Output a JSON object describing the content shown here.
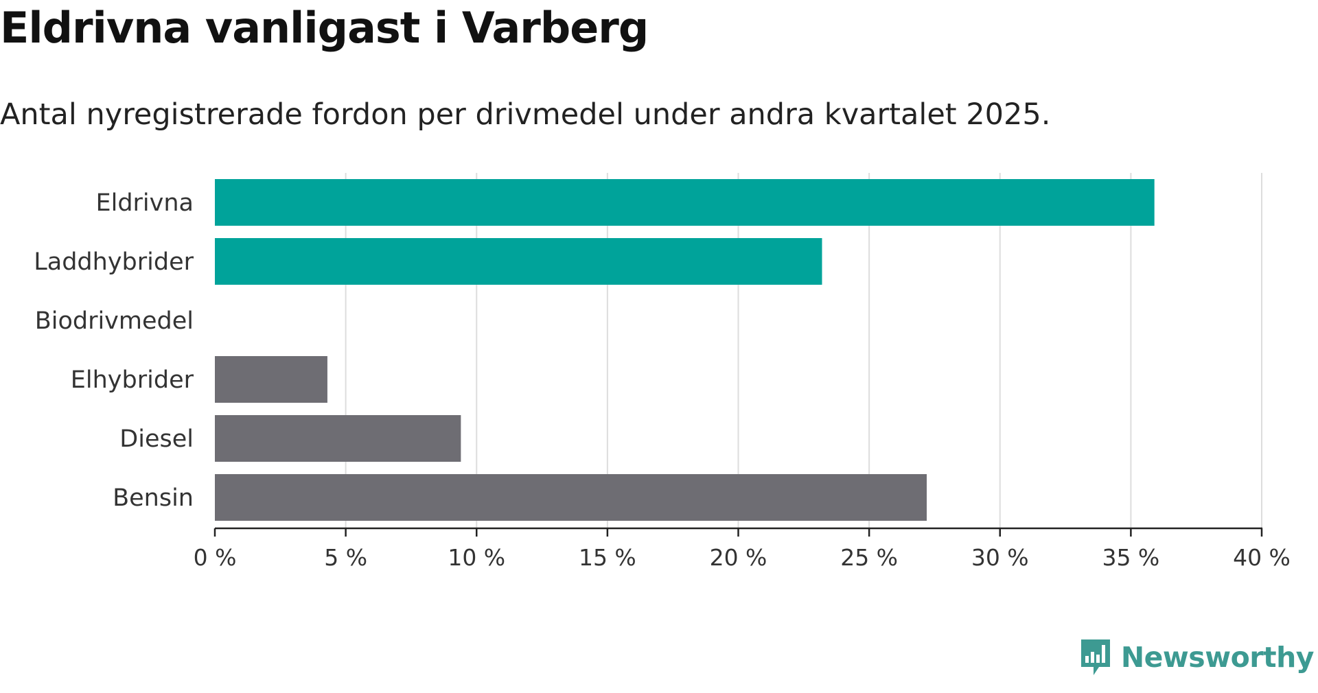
{
  "title": "Eldrivna vanligast i Varberg",
  "subtitle": "Antal nyregistrerade fordon per drivmedel under andra kvartalet 2025.",
  "brand": {
    "name": "Newsworthy",
    "color": "#3d9a92",
    "icon": "newsworthy-logo-icon"
  },
  "colors": {
    "highlight": "#00a39a",
    "default": "#6e6d73",
    "grid": "#dddddd",
    "axis": "#222222"
  },
  "chart_data": {
    "type": "bar",
    "orientation": "horizontal",
    "categories": [
      "Eldrivna",
      "Laddhybrider",
      "Biodrivmedel",
      "Elhybrider",
      "Diesel",
      "Bensin"
    ],
    "values": [
      35.9,
      23.2,
      0,
      4.3,
      9.4,
      27.2
    ],
    "highlighted": [
      true,
      true,
      false,
      false,
      false,
      false
    ],
    "xlim": [
      0,
      40
    ],
    "xticks": [
      0,
      5,
      10,
      15,
      20,
      25,
      30,
      35,
      40
    ],
    "xtick_labels": [
      "0 %",
      "5 %",
      "10 %",
      "15 %",
      "20 %",
      "25 %",
      "30 %",
      "35 %",
      "40 %"
    ],
    "grid": "vertical"
  }
}
